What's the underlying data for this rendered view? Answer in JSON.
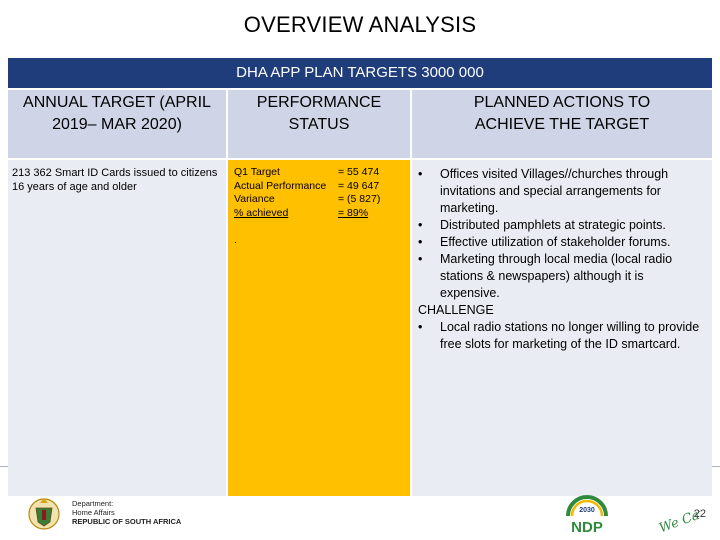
{
  "title": "OVERVIEW ANALYSIS",
  "banner": "DHA APP PLAN TARGETS 3000 000",
  "headers": [
    "ANNUAL TARGET (APRIL 2019– MAR 2020)",
    "PERFORMANCE STATUS",
    "PLANNED  ACTIONS TO ACHIEVE THE TARGET"
  ],
  "annual_target_text": "213 362 Smart ID Cards issued to citizens 16 years of age and older",
  "performance": {
    "rows": [
      {
        "label": "Q1 Target",
        "value": "= 55 474"
      },
      {
        "label": "Actual Performance",
        "value": "= 49  647"
      },
      {
        "label": "Variance",
        "value": "=  (5 827)"
      },
      {
        "label": "% achieved",
        "value": "= 89%"
      }
    ],
    "dot": "."
  },
  "actions": {
    "bullet_glyph": "•",
    "items": [
      "Offices visited Villages//churches through invitations and special arrangements for marketing.",
      "Distributed  pamphlets at strategic points.",
      "Effective utilization of stakeholder forums.",
      "Marketing through local media (local radio stations & newspapers) although it is expensive."
    ],
    "challenge_heading": "CHALLENGE",
    "challenge_items": [
      "Local radio stations no longer willing to provide free slots for marketing of the ID smartcard."
    ]
  },
  "footer": {
    "dept_line1": "Department:",
    "dept_line2": "Home Affairs",
    "dept_line3": "REPUBLIC OF SOUTH AFRICA",
    "ndp_logo_text": "NDP",
    "ndp_year": "2030",
    "we_care": "We Care",
    "page_number": "22"
  },
  "colors": {
    "banner": "#1f3d7a",
    "header": "#cfd5e6",
    "body": "#e9ecf3",
    "highlight": "#ffc000"
  }
}
